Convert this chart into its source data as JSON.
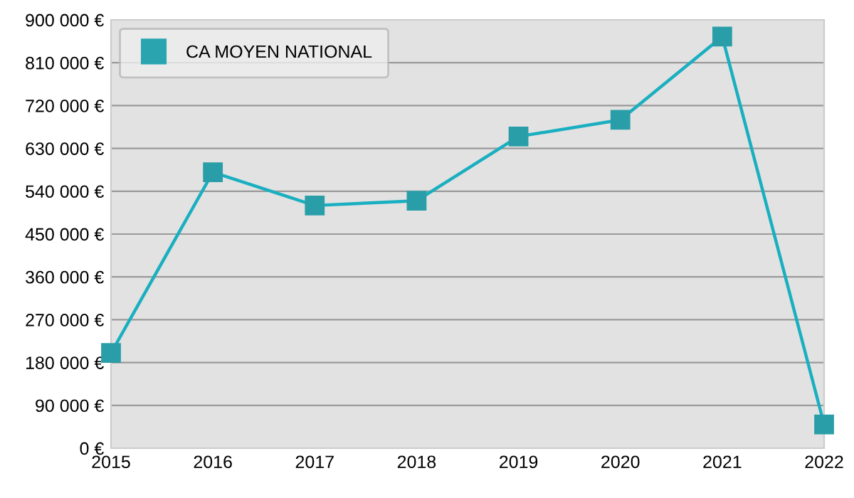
{
  "chart_data": {
    "type": "line",
    "x": [
      2015,
      2016,
      2017,
      2018,
      2019,
      2020,
      2021,
      2022
    ],
    "series": [
      {
        "name": "CA MOYEN NATIONAL",
        "color": "#1aafc0",
        "values": [
          200000,
          580000,
          510000,
          520000,
          655000,
          690000,
          865000,
          50000
        ]
      }
    ],
    "xlim": [
      2015,
      2022
    ],
    "xticks": [
      2015,
      2016,
      2017,
      2018,
      2019,
      2020,
      2021,
      2022
    ],
    "ylim": [
      0,
      900000
    ],
    "yticks": [
      {
        "value": 0,
        "label": "0 €"
      },
      {
        "value": 90000,
        "label": "90 000 €"
      },
      {
        "value": 180000,
        "label": "180 000 €"
      },
      {
        "value": 270000,
        "label": "270 000 €"
      },
      {
        "value": 360000,
        "label": "360 000 €"
      },
      {
        "value": 450000,
        "label": "450 000 €"
      },
      {
        "value": 540000,
        "label": "540 000 €"
      },
      {
        "value": 630000,
        "label": "630 000 €"
      },
      {
        "value": 720000,
        "label": "720 000 €"
      },
      {
        "value": 810000,
        "label": "810 000 €"
      },
      {
        "value": 900000,
        "label": "900 000 €"
      }
    ],
    "grid": "y",
    "legend": "top left",
    "marker": "square",
    "line_style": "solid"
  }
}
